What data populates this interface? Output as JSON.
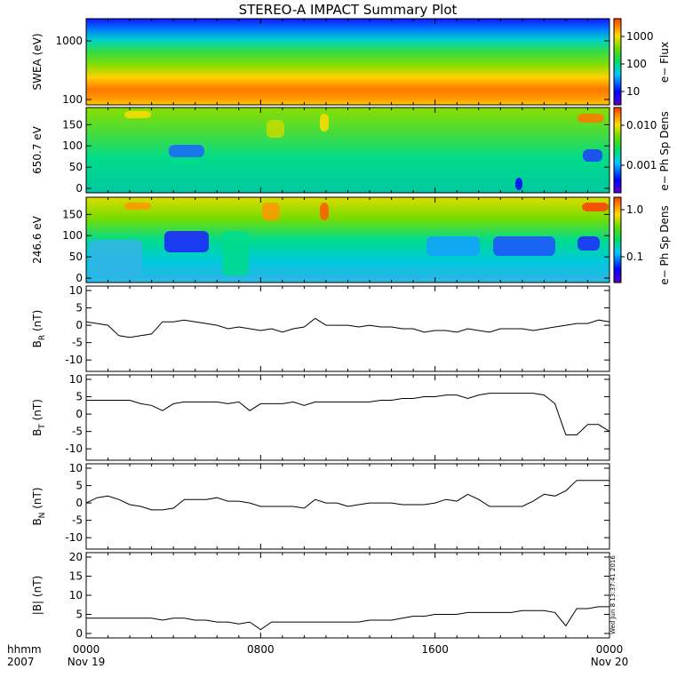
{
  "title": "STEREO-A IMPACT Summary Plot",
  "timestamp": "Wed Jun 8 13:37:41 2016",
  "x_axis": {
    "row1": [
      "0000",
      "0800",
      "1600",
      "0000"
    ],
    "row2": [
      "Nov 19",
      "",
      "",
      "Nov 20"
    ],
    "left_row1": "hhmm",
    "left_row2": "2007"
  },
  "colors": {
    "line": "#000000",
    "spec_low": "#5a00c8",
    "spec_high": "#ff3c00"
  },
  "chart_data": [
    {
      "type": "heatmap",
      "name": "swea",
      "ylabel": "SWEA (eV)",
      "yscale": "log",
      "yticks": [
        "1000",
        "100"
      ],
      "colorbar": {
        "label": "e− Flux",
        "ticks": [
          "1000",
          "100",
          "10"
        ]
      },
      "note": "energy spectrogram; red near 100-200 eV, green ~500 eV, blue above 1000 eV"
    },
    {
      "type": "heatmap",
      "name": "pad650",
      "ylabel": "650.7 eV",
      "ylim": [
        0,
        180
      ],
      "yticks": [
        "150",
        "100",
        "50",
        "0"
      ],
      "colorbar": {
        "label": "e− Ph Sp Dens",
        "ticks": [
          "0.010",
          "0.001"
        ]
      }
    },
    {
      "type": "heatmap",
      "name": "pad246",
      "ylabel": "246.6 eV",
      "ylim": [
        0,
        180
      ],
      "yticks": [
        "150",
        "100",
        "50",
        "0"
      ],
      "colorbar": {
        "label": "e− Ph Sp Dens",
        "ticks": [
          "1.0",
          "0.1"
        ]
      }
    },
    {
      "type": "line",
      "name": "br",
      "ylabel_main": "B",
      "ylabel_sub": "R",
      "ylabel_unit": " (nT)",
      "ylim": [
        -12,
        10
      ],
      "yticks": [
        "10",
        "5",
        "0",
        "-5",
        "-10"
      ],
      "x": [
        0,
        0.5,
        1,
        1.5,
        2,
        2.5,
        3,
        3.5,
        4,
        4.5,
        5,
        5.5,
        6,
        6.5,
        7,
        7.5,
        8,
        8.5,
        9,
        9.5,
        10,
        10.5,
        11,
        11.5,
        12,
        12.5,
        13,
        13.5,
        14,
        14.5,
        15,
        15.5,
        16,
        16.5,
        17,
        17.5,
        18,
        18.5,
        19,
        19.5,
        20,
        20.5,
        21,
        21.5,
        22,
        22.5,
        23,
        23.5,
        24
      ],
      "values": [
        1,
        0.5,
        0,
        -3,
        -3.5,
        -3,
        -2.5,
        1,
        1,
        1.5,
        1,
        0.5,
        0,
        -1,
        -0.5,
        -1,
        -1.5,
        -1,
        -2,
        -1,
        -0.5,
        2,
        0,
        0,
        0,
        -0.5,
        0,
        -0.5,
        -0.5,
        -1,
        -1,
        -2,
        -1.5,
        -1.5,
        -2,
        -1,
        -1.5,
        -2,
        -1,
        -1,
        -1,
        -1.5,
        -1,
        -0.5,
        0,
        0.5,
        0.5,
        1.5,
        1
      ]
    },
    {
      "type": "line",
      "name": "bt",
      "ylabel_main": "B",
      "ylabel_sub": "T",
      "ylabel_unit": " (nT)",
      "ylim": [
        -12,
        10
      ],
      "yticks": [
        "10",
        "5",
        "0",
        "-5",
        "-10"
      ],
      "x": [
        0,
        0.5,
        1,
        1.5,
        2,
        2.5,
        3,
        3.5,
        4,
        4.5,
        5,
        5.5,
        6,
        6.5,
        7,
        7.5,
        8,
        8.5,
        9,
        9.5,
        10,
        10.5,
        11,
        11.5,
        12,
        12.5,
        13,
        13.5,
        14,
        14.5,
        15,
        15.5,
        16,
        16.5,
        17,
        17.5,
        18,
        18.5,
        19,
        19.5,
        20,
        20.5,
        21,
        21.5,
        22,
        22.5,
        23,
        23.5,
        24
      ],
      "values": [
        4,
        4,
        4,
        4,
        4,
        3,
        2.5,
        1,
        3,
        3.5,
        3.5,
        3.5,
        3.5,
        3,
        3.5,
        1,
        3,
        3,
        3,
        3.5,
        2.5,
        3.5,
        3.5,
        3.5,
        3.5,
        3.5,
        3.5,
        4,
        4,
        4.5,
        4.5,
        5,
        5,
        5.5,
        5.5,
        4.5,
        5.5,
        6,
        6,
        6,
        6,
        6,
        5.5,
        3,
        -6,
        -6,
        -3,
        -3,
        -5
      ]
    },
    {
      "type": "line",
      "name": "bn",
      "ylabel_main": "B",
      "ylabel_sub": "N",
      "ylabel_unit": " (nT)",
      "ylim": [
        -12,
        10
      ],
      "yticks": [
        "10",
        "5",
        "0",
        "-5",
        "-10"
      ],
      "x": [
        0,
        0.5,
        1,
        1.5,
        2,
        2.5,
        3,
        3.5,
        4,
        4.5,
        5,
        5.5,
        6,
        6.5,
        7,
        7.5,
        8,
        8.5,
        9,
        9.5,
        10,
        10.5,
        11,
        11.5,
        12,
        12.5,
        13,
        13.5,
        14,
        14.5,
        15,
        15.5,
        16,
        16.5,
        17,
        17.5,
        18,
        18.5,
        19,
        19.5,
        20,
        20.5,
        21,
        21.5,
        22,
        22.5,
        23,
        23.5,
        24
      ],
      "values": [
        0,
        1.5,
        2,
        1,
        -0.5,
        -1,
        -2,
        -2,
        -1.5,
        1,
        1,
        1,
        1.5,
        0.5,
        0.5,
        0,
        -1,
        -1,
        -1,
        -1,
        -1.5,
        1,
        0,
        0,
        -1,
        -0.5,
        0,
        0,
        0,
        -0.5,
        -0.5,
        -0.5,
        0,
        1,
        0.5,
        2.5,
        1,
        -1,
        -1,
        -1,
        -1,
        0.5,
        2.5,
        2,
        3.5,
        6.5,
        6.5,
        6.5,
        6.5
      ]
    },
    {
      "type": "line",
      "name": "bmag",
      "ylabel_main": "|B|",
      "ylabel_sub": "",
      "ylabel_unit": " (nT)",
      "ylim": [
        0,
        20
      ],
      "yticks": [
        "20",
        "15",
        "10",
        "5",
        "0"
      ],
      "x": [
        0,
        0.5,
        1,
        1.5,
        2,
        2.5,
        3,
        3.5,
        4,
        4.5,
        5,
        5.5,
        6,
        6.5,
        7,
        7.5,
        8,
        8.5,
        9,
        9.5,
        10,
        10.5,
        11,
        11.5,
        12,
        12.5,
        13,
        13.5,
        14,
        14.5,
        15,
        15.5,
        16,
        16.5,
        17,
        17.5,
        18,
        18.5,
        19,
        19.5,
        20,
        20.5,
        21,
        21.5,
        22,
        22.5,
        23,
        23.5,
        24
      ],
      "values": [
        4,
        4,
        4,
        4,
        4,
        4,
        4,
        3.5,
        4,
        4,
        3.5,
        3.5,
        3,
        3,
        2.5,
        3,
        1,
        3,
        3,
        3,
        3,
        3,
        3,
        3,
        3,
        3,
        3.5,
        3.5,
        3.5,
        4,
        4.5,
        4.5,
        5,
        5,
        5,
        5.5,
        5.5,
        5.5,
        5.5,
        5.5,
        6,
        6,
        6,
        5.5,
        2,
        6.5,
        6.5,
        7,
        7
      ]
    }
  ]
}
